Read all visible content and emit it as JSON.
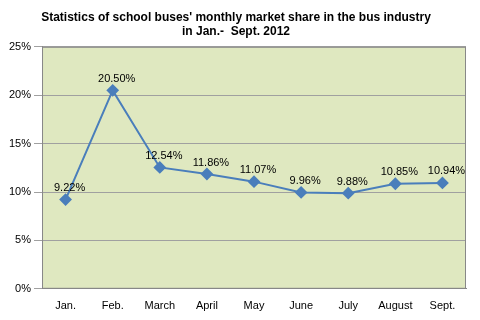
{
  "chart_data": {
    "type": "line",
    "title": [
      "Statistics of school buses' monthly market share in the bus industry",
      "in Jan.-  Sept. 2012"
    ],
    "categories": [
      "Jan.",
      "Feb.",
      "March",
      "April",
      "May",
      "June",
      "July",
      "August",
      "Sept."
    ],
    "values": [
      9.22,
      20.5,
      12.54,
      11.86,
      11.07,
      9.96,
      9.88,
      10.85,
      10.94
    ],
    "value_labels": [
      "9.22%",
      "20.50%",
      "12.54%",
      "11.86%",
      "11.07%",
      "9.96%",
      "9.88%",
      "10.85%",
      "10.94%"
    ],
    "color": "#4a7ebb",
    "marker": "diamond",
    "data_labels": true,
    "ylim": [
      0,
      25
    ],
    "yticks": [
      {
        "value": 0,
        "label": "0%"
      },
      {
        "value": 5,
        "label": "5%"
      },
      {
        "value": 10,
        "label": "10%"
      },
      {
        "value": 15,
        "label": "15%"
      },
      {
        "value": 20,
        "label": "20%"
      },
      {
        "value": 25,
        "label": "25%"
      }
    ],
    "grid": true
  }
}
